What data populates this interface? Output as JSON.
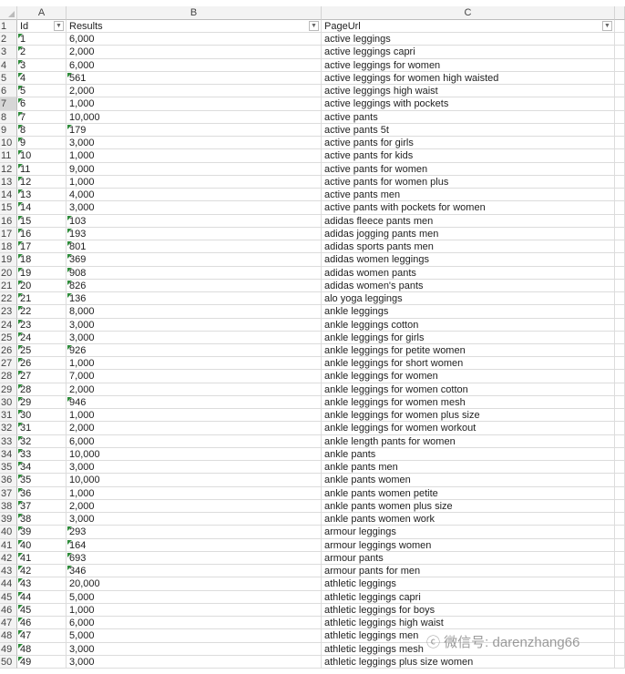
{
  "columns": [
    "A",
    "B",
    "C"
  ],
  "headers": {
    "id": "Id",
    "results": "Results",
    "page_url": "PageUrl"
  },
  "selected_row": 7,
  "watermark": "微信号: darenzhang66",
  "rows": [
    [
      "1",
      "6,000",
      "active leggings"
    ],
    [
      "2",
      "2,000",
      "active leggings capri"
    ],
    [
      "3",
      "6,000",
      "active leggings for women"
    ],
    [
      "4",
      "561",
      "active leggings for women high waisted"
    ],
    [
      "5",
      "2,000",
      "active leggings high waist"
    ],
    [
      "6",
      "1,000",
      "active leggings with pockets"
    ],
    [
      "7",
      "10,000",
      "active pants"
    ],
    [
      "8",
      "179",
      "active pants 5t"
    ],
    [
      "9",
      "3,000",
      "active pants for girls"
    ],
    [
      "10",
      "1,000",
      "active pants for kids"
    ],
    [
      "11",
      "9,000",
      "active pants for women"
    ],
    [
      "12",
      "1,000",
      "active pants for women plus"
    ],
    [
      "13",
      "4,000",
      "active pants men"
    ],
    [
      "14",
      "3,000",
      "active pants with pockets for women"
    ],
    [
      "15",
      "103",
      "adidas fleece pants men"
    ],
    [
      "16",
      "193",
      "adidas jogging pants men"
    ],
    [
      "17",
      "801",
      "adidas sports pants men"
    ],
    [
      "18",
      "369",
      "adidas women leggings"
    ],
    [
      "19",
      "908",
      "adidas women pants"
    ],
    [
      "20",
      "826",
      "adidas women's pants"
    ],
    [
      "21",
      "136",
      "alo yoga leggings"
    ],
    [
      "22",
      "8,000",
      "ankle leggings"
    ],
    [
      "23",
      "3,000",
      "ankle leggings cotton"
    ],
    [
      "24",
      "3,000",
      "ankle leggings for girls"
    ],
    [
      "25",
      "926",
      "ankle leggings for petite women"
    ],
    [
      "26",
      "1,000",
      "ankle leggings for short women"
    ],
    [
      "27",
      "7,000",
      "ankle leggings for women"
    ],
    [
      "28",
      "2,000",
      "ankle leggings for women cotton"
    ],
    [
      "29",
      "946",
      "ankle leggings for women mesh"
    ],
    [
      "30",
      "1,000",
      "ankle leggings for women plus size"
    ],
    [
      "31",
      "2,000",
      "ankle leggings for women workout"
    ],
    [
      "32",
      "6,000",
      "ankle length pants for women"
    ],
    [
      "33",
      "10,000",
      "ankle pants"
    ],
    [
      "34",
      "3,000",
      "ankle pants men"
    ],
    [
      "35",
      "10,000",
      "ankle pants women"
    ],
    [
      "36",
      "1,000",
      "ankle pants women petite"
    ],
    [
      "37",
      "2,000",
      "ankle pants women plus size"
    ],
    [
      "38",
      "3,000",
      "ankle pants women work"
    ],
    [
      "39",
      "293",
      "armour leggings"
    ],
    [
      "40",
      "164",
      "armour leggings women"
    ],
    [
      "41",
      "693",
      "armour pants"
    ],
    [
      "42",
      "346",
      "armour pants for men"
    ],
    [
      "43",
      "20,000",
      "athletic leggings"
    ],
    [
      "44",
      "5,000",
      "athletic leggings capri"
    ],
    [
      "45",
      "1,000",
      "athletic leggings for boys"
    ],
    [
      "46",
      "6,000",
      "athletic leggings high waist"
    ],
    [
      "47",
      "5,000",
      "athletic leggings men"
    ],
    [
      "48",
      "3,000",
      "athletic leggings mesh"
    ],
    [
      "49",
      "3,000",
      "athletic leggings plus size women"
    ]
  ]
}
